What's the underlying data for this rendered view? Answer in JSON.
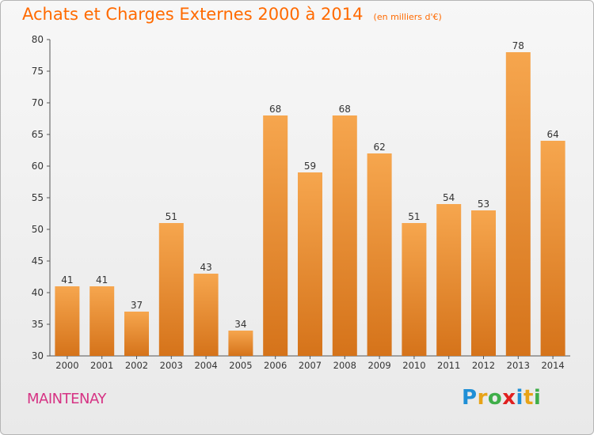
{
  "header": {
    "title": "Achats et Charges Externes 2000 à 2014",
    "subtitle": "(en milliers d'€)"
  },
  "footer": {
    "commune": "MAINTENAY",
    "brand_letters": [
      "P",
      "r",
      "o",
      "x",
      "i",
      "t",
      "i"
    ],
    "brand_colors": [
      "#1f8fd6",
      "#e8a317",
      "#3fae49",
      "#e02020",
      "#1f8fd6",
      "#e8a317",
      "#3fae49"
    ]
  },
  "colors": {
    "bar_light": "#f6a64e",
    "bar_dark": "#d5731a",
    "title": "#ff6a00",
    "commune": "#d63384"
  },
  "chart_data": {
    "type": "bar",
    "title": "Achats et Charges Externes 2000 à 2014",
    "subtitle": "(en milliers d'€)",
    "categories": [
      "2000",
      "2001",
      "2002",
      "2003",
      "2004",
      "2005",
      "2006",
      "2007",
      "2008",
      "2009",
      "2010",
      "2011",
      "2012",
      "2013",
      "2014"
    ],
    "values": [
      41,
      41,
      37,
      51,
      43,
      34,
      68,
      59,
      68,
      62,
      51,
      54,
      53,
      78,
      64
    ],
    "ylim": [
      30,
      80
    ],
    "yticks": [
      30,
      35,
      40,
      45,
      50,
      55,
      60,
      65,
      70,
      75,
      80
    ],
    "grid": false,
    "data_labels": true
  }
}
